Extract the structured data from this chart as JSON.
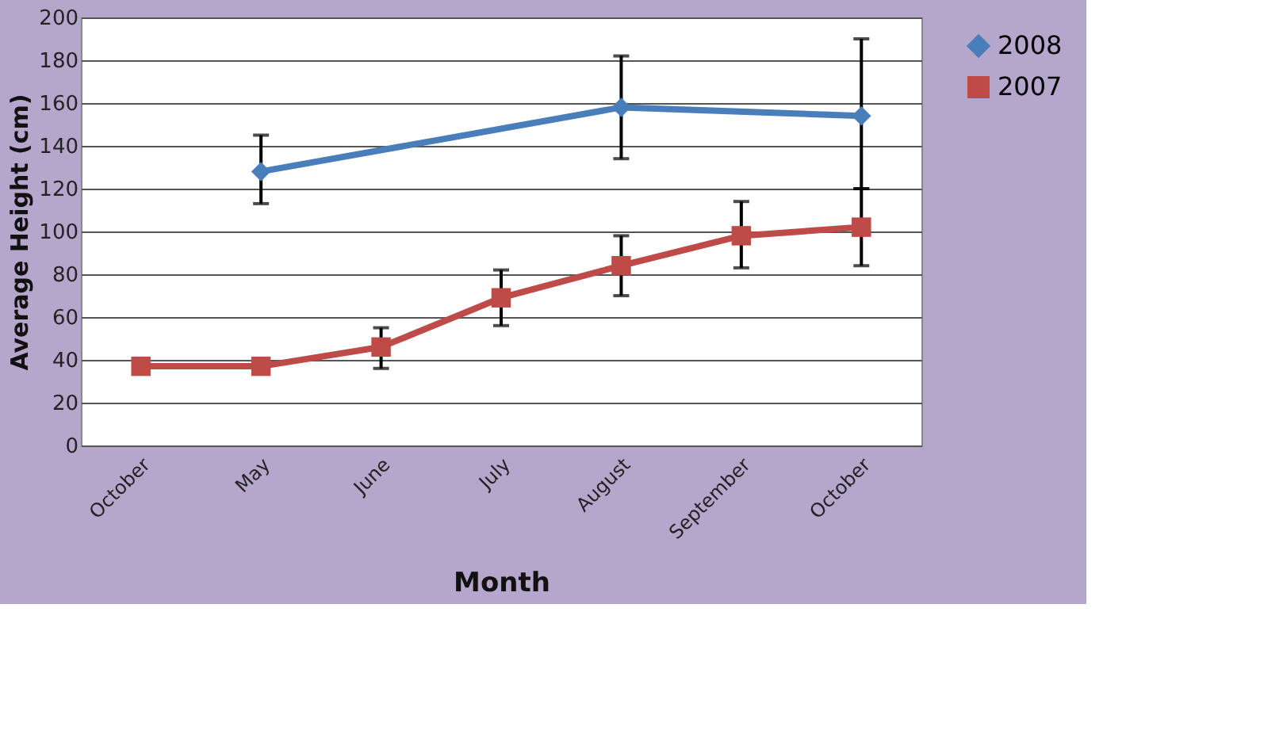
{
  "chart_data": {
    "type": "line",
    "xlabel": "Month",
    "ylabel": "Average Height (cm)",
    "categories": [
      "October",
      "May",
      "June",
      "July",
      "August",
      "September",
      "October"
    ],
    "series": [
      {
        "name": "2008",
        "color": "#4a7ebb",
        "marker": "diamond",
        "values": [
          null,
          128,
          null,
          null,
          158,
          null,
          154
        ],
        "errors": [
          null,
          [
            113,
            145
          ],
          null,
          null,
          [
            134,
            182
          ],
          null,
          [
            120,
            190
          ]
        ]
      },
      {
        "name": "2007",
        "color": "#be4b48",
        "marker": "square",
        "values": [
          37,
          37,
          46,
          69,
          84,
          98,
          102
        ],
        "errors": [
          null,
          null,
          [
            36,
            55
          ],
          [
            56,
            82
          ],
          [
            70,
            98
          ],
          [
            83,
            114
          ],
          [
            84,
            120
          ]
        ]
      }
    ],
    "ylim": [
      0,
      200
    ],
    "yticks": [
      0,
      20,
      40,
      60,
      80,
      100,
      120,
      140,
      160,
      180,
      200
    ],
    "grid": "y",
    "legend": "right",
    "line_style": "solid"
  }
}
